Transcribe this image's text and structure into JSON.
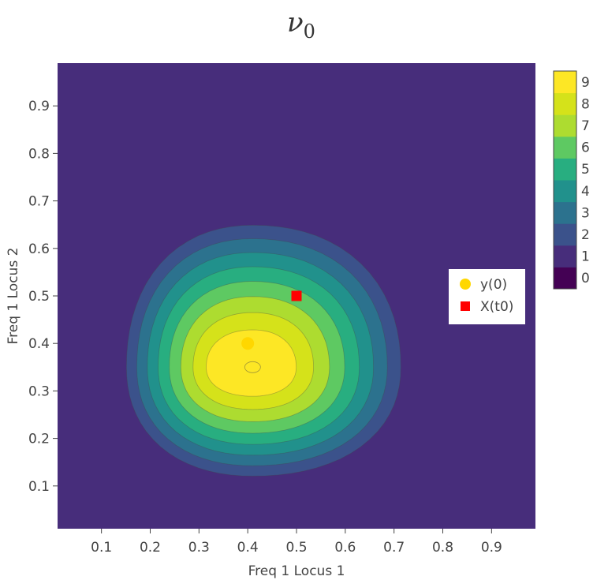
{
  "chart_data": {
    "type": "contour",
    "title": {
      "main": "ν",
      "sub": "0"
    },
    "xlabel": "Freq 1 Locus 1",
    "ylabel": "Freq 1 Locus 2",
    "xlim": [
      0.01,
      0.99
    ],
    "ylim": [
      0.01,
      0.99
    ],
    "xticks": [
      0.1,
      0.2,
      0.3,
      0.4,
      0.5,
      0.6,
      0.7,
      0.8,
      0.9
    ],
    "yticks": [
      0.1,
      0.2,
      0.3,
      0.4,
      0.5,
      0.6,
      0.7,
      0.8,
      0.9
    ],
    "xtick_labels": [
      "0.1",
      "0.2",
      "0.3",
      "0.4",
      "0.5",
      "0.6",
      "0.7",
      "0.8",
      "0.9"
    ],
    "ytick_labels": [
      "0.1",
      "0.2",
      "0.3",
      "0.4",
      "0.5",
      "0.6",
      "0.7",
      "0.8",
      "0.9"
    ],
    "contour_levels": [
      0,
      1,
      2,
      3,
      4,
      5,
      6,
      7,
      8,
      9
    ],
    "level_labels": [
      "0",
      "1",
      "2",
      "3",
      "4",
      "5",
      "6",
      "7",
      "8",
      "9"
    ],
    "colorscale": [
      "#440154",
      "#472d7b",
      "#3b528b",
      "#2c728e",
      "#21918c",
      "#28ae80",
      "#5ec962",
      "#addc30",
      "#d5e21a",
      "#fde725"
    ],
    "density_peak": {
      "x": 0.41,
      "y": 0.35,
      "value": 9
    },
    "markers": [
      {
        "name": "y(0)",
        "x": 0.4,
        "y": 0.4,
        "symbol": "circle",
        "color": "#ffd700"
      },
      {
        "name": "X(t0)",
        "x": 0.5,
        "y": 0.5,
        "symbol": "square",
        "color": "#ff0000"
      }
    ],
    "legend": [
      "y(0)",
      "X(t0)"
    ],
    "legend_position": "right",
    "grid": false
  }
}
